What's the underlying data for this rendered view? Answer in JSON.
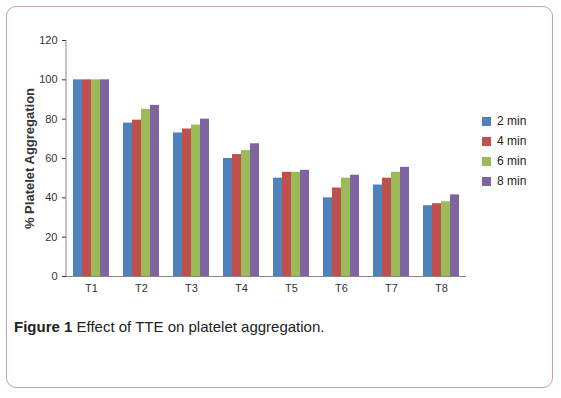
{
  "chart_data": {
    "type": "bar",
    "categories": [
      "T1",
      "T2",
      "T3",
      "T4",
      "T5",
      "T6",
      "T7",
      "T8"
    ],
    "series": [
      {
        "name": "2 min",
        "color": "#4f81bd",
        "values": [
          100,
          78,
          73,
          60,
          50,
          40,
          46.5,
          36
        ]
      },
      {
        "name": "4 min",
        "color": "#c0504d",
        "values": [
          100,
          79.5,
          75,
          62,
          53,
          45,
          50,
          37
        ]
      },
      {
        "name": "6 min",
        "color": "#9bbb59",
        "values": [
          100,
          85,
          77,
          64,
          53,
          50,
          53,
          38
        ]
      },
      {
        "name": "8 min",
        "color": "#8064a2",
        "values": [
          100,
          87,
          80,
          67.5,
          54,
          51.5,
          55.5,
          41.5
        ]
      }
    ],
    "y_label": "% Platelet Aggregation",
    "caption": "Figure 1 Effect of TTE on platelet aggregation.",
    "ylim": [
      0,
      120
    ],
    "yticks": [
      0,
      20,
      40,
      60,
      80,
      100,
      120
    ],
    "grid": false,
    "legend": "right"
  }
}
